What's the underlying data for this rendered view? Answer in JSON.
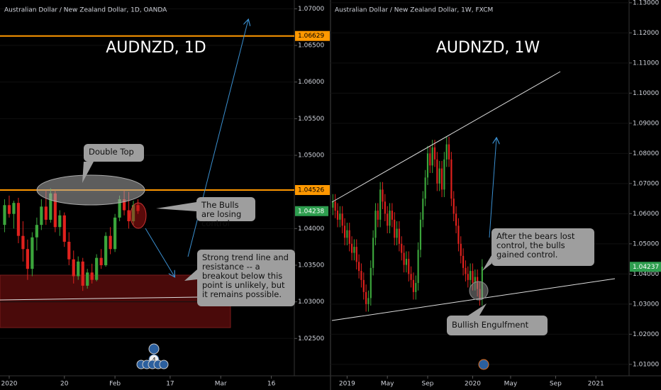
{
  "chart_data": [
    {
      "type": "candlestick",
      "title": "Australian Dollar / New Zealand Dollar, 1D, OANDA",
      "watermark": "AUDNZD, 1D",
      "up_color": "#3ba53b",
      "down_color": "#e0211d",
      "open": [
        1.0405,
        1.0432,
        1.042,
        1.0435,
        1.039,
        1.0372,
        1.0345,
        1.0388,
        1.0405,
        1.043,
        1.0412,
        1.0448,
        1.0402,
        1.0418,
        1.0382,
        1.0358,
        1.0335,
        1.0355,
        1.0322,
        1.034,
        1.033,
        1.036,
        1.035,
        1.039,
        1.0372,
        1.0415,
        1.044,
        1.0425,
        1.041,
        1.0432
      ],
      "high": [
        1.044,
        1.0445,
        1.0438,
        1.0442,
        1.041,
        1.0385,
        1.0395,
        1.0415,
        1.044,
        1.0452,
        1.0455,
        1.0452,
        1.0425,
        1.0422,
        1.0395,
        1.037,
        1.0362,
        1.036,
        1.0345,
        1.0352,
        1.0365,
        1.0372,
        1.0395,
        1.0402,
        1.042,
        1.0445,
        1.0452,
        1.045,
        1.0438,
        1.044
      ],
      "low": [
        1.0395,
        1.0415,
        1.04,
        1.038,
        1.0355,
        1.033,
        1.0335,
        1.037,
        1.0398,
        1.0405,
        1.0408,
        1.0395,
        1.039,
        1.0375,
        1.035,
        1.0325,
        1.033,
        1.0315,
        1.0318,
        1.0325,
        1.0328,
        1.0345,
        1.0348,
        1.0365,
        1.0368,
        1.041,
        1.0418,
        1.04,
        1.0405,
        1.042
      ],
      "close": [
        1.0432,
        1.042,
        1.0435,
        1.039,
        1.0372,
        1.0345,
        1.0388,
        1.0405,
        1.043,
        1.0412,
        1.0448,
        1.0402,
        1.0418,
        1.0382,
        1.0358,
        1.0335,
        1.0355,
        1.0322,
        1.034,
        1.033,
        1.036,
        1.035,
        1.039,
        1.0372,
        1.0415,
        1.044,
        1.0425,
        1.041,
        1.0432,
        1.0424
      ],
      "xlim": [
        -1,
        63
      ],
      "xticks": [
        {
          "value": 1,
          "label": "2020"
        },
        {
          "value": 13,
          "label": "20"
        },
        {
          "value": 24,
          "label": "Feb"
        },
        {
          "value": 36,
          "label": "17"
        },
        {
          "value": 47,
          "label": "Mar"
        },
        {
          "value": 58,
          "label": "16"
        }
      ],
      "ylim": [
        1.0199,
        1.0712
      ],
      "yticks": [
        {
          "value": 1.025,
          "label": "1.02500"
        },
        {
          "value": 1.03,
          "label": "1.03000"
        },
        {
          "value": 1.035,
          "label": "1.03500"
        },
        {
          "value": 1.04,
          "label": "1.04000"
        },
        {
          "value": 1.045,
          "label": "1.04500"
        },
        {
          "value": 1.05,
          "label": "1.05000"
        },
        {
          "value": 1.055,
          "label": "1.05500"
        },
        {
          "value": 1.06,
          "label": "1.06000"
        },
        {
          "value": 1.065,
          "label": "1.06500"
        },
        {
          "value": 1.07,
          "label": "1.07000"
        }
      ],
      "price_lines": [
        {
          "value": 1.06629,
          "color": "#ff9800"
        },
        {
          "value": 1.04526,
          "color": "#ff9800"
        }
      ],
      "last_price": {
        "value": 1.04238,
        "color": "#2e9e4f"
      },
      "event_count": 4,
      "annotations": [
        "Double Top",
        "The Bulls are losing control",
        "Strong trend line and resistance -- a breakout below this point is unlikely, but it remains possible."
      ]
    },
    {
      "type": "candlestick",
      "title": "Australian Dollar / New Zealand Dollar, 1W, FXCM",
      "watermark": "AUDNZD, 1W",
      "up_color": "#3ba53b",
      "down_color": "#e0211d",
      "open": [
        1.062,
        1.064,
        1.061,
        1.058,
        1.06,
        1.056,
        1.052,
        1.0545,
        1.05,
        1.047,
        1.049,
        1.044,
        1.041,
        1.038,
        1.034,
        1.03,
        1.032,
        1.042,
        1.052,
        1.061,
        1.058,
        1.068,
        1.064,
        1.06,
        1.056,
        1.061,
        1.058,
        1.052,
        1.055,
        1.05,
        1.047,
        1.043,
        1.045,
        1.04,
        1.038,
        1.034,
        1.037,
        1.048,
        1.058,
        1.065,
        1.072,
        1.08,
        1.076,
        1.082,
        1.078,
        1.07,
        1.075,
        1.068,
        1.078,
        1.083,
        1.078,
        1.065,
        1.06,
        1.056,
        1.05,
        1.046,
        1.042,
        1.04,
        1.038,
        1.041,
        1.037,
        1.039,
        1.035,
        1.032
      ],
      "high": [
        1.0665,
        1.0665,
        1.0635,
        1.0625,
        1.0625,
        1.0585,
        1.057,
        1.057,
        1.0525,
        1.0515,
        1.0515,
        1.0465,
        1.0435,
        1.0405,
        1.0365,
        1.0345,
        1.0445,
        1.0545,
        1.0635,
        1.0635,
        1.0705,
        1.0705,
        1.0665,
        1.0625,
        1.0635,
        1.0635,
        1.0605,
        1.0575,
        1.0575,
        1.0525,
        1.0495,
        1.0475,
        1.0475,
        1.0425,
        1.0405,
        1.0395,
        1.0505,
        1.0605,
        1.0675,
        1.0745,
        1.0825,
        1.0825,
        1.0845,
        1.0845,
        1.0805,
        1.0775,
        1.0775,
        1.0805,
        1.0855,
        1.0855,
        1.0805,
        1.0675,
        1.0625,
        1.0585,
        1.0525,
        1.0485,
        1.0445,
        1.0425,
        1.0435,
        1.0435,
        1.0415,
        1.0415,
        1.0375,
        1.0449
      ],
      "low": [
        1.0595,
        1.0585,
        1.0555,
        1.0555,
        1.0535,
        1.0495,
        1.0495,
        1.0475,
        1.0445,
        1.0445,
        1.0415,
        1.0385,
        1.0355,
        1.0315,
        1.0275,
        1.0275,
        1.0295,
        1.0395,
        1.0495,
        1.0555,
        1.0555,
        1.0615,
        1.0575,
        1.0535,
        1.0535,
        1.0555,
        1.0495,
        1.0495,
        1.0475,
        1.0445,
        1.0405,
        1.0405,
        1.0375,
        1.0355,
        1.0315,
        1.0315,
        1.0345,
        1.0455,
        1.0555,
        1.0625,
        1.0695,
        1.0735,
        1.0735,
        1.0755,
        1.0675,
        1.0675,
        1.0655,
        1.0655,
        1.0755,
        1.0755,
        1.0625,
        1.0575,
        1.0535,
        1.0475,
        1.0435,
        1.0395,
        1.0375,
        1.0355,
        1.0355,
        1.0345,
        1.0345,
        1.0325,
        1.0295,
        1.0295
      ],
      "close": [
        1.064,
        1.061,
        1.058,
        1.06,
        1.056,
        1.052,
        1.0545,
        1.05,
        1.047,
        1.049,
        1.044,
        1.041,
        1.038,
        1.034,
        1.03,
        1.032,
        1.042,
        1.052,
        1.061,
        1.058,
        1.068,
        1.064,
        1.06,
        1.056,
        1.061,
        1.058,
        1.052,
        1.055,
        1.05,
        1.047,
        1.043,
        1.045,
        1.04,
        1.038,
        1.034,
        1.037,
        1.048,
        1.058,
        1.065,
        1.072,
        1.08,
        1.076,
        1.082,
        1.078,
        1.07,
        1.075,
        1.068,
        1.078,
        1.083,
        1.078,
        1.065,
        1.06,
        1.056,
        1.05,
        1.046,
        1.042,
        1.04,
        1.038,
        1.041,
        1.037,
        1.039,
        1.035,
        1.032,
        1.0424
      ],
      "xlim": [
        -1,
        125
      ],
      "xticks": [
        {
          "value": 6,
          "label": "2019"
        },
        {
          "value": 23,
          "label": "May"
        },
        {
          "value": 40,
          "label": "Sep"
        },
        {
          "value": 59,
          "label": "2020"
        },
        {
          "value": 75,
          "label": "May"
        },
        {
          "value": 94,
          "label": "Sep"
        },
        {
          "value": 111,
          "label": "2021"
        }
      ],
      "ylim": [
        1.0062,
        1.1309
      ],
      "yticks": [
        {
          "value": 1.01,
          "label": "1.01000"
        },
        {
          "value": 1.02,
          "label": "1.02000"
        },
        {
          "value": 1.03,
          "label": "1.03000"
        },
        {
          "value": 1.04,
          "label": "1.04000"
        },
        {
          "value": 1.05,
          "label": "1.05000"
        },
        {
          "value": 1.06,
          "label": "1.06000"
        },
        {
          "value": 1.07,
          "label": "1.07000"
        },
        {
          "value": 1.08,
          "label": "1.08000"
        },
        {
          "value": 1.09,
          "label": "1.09000"
        },
        {
          "value": 1.1,
          "label": "1.10000"
        },
        {
          "value": 1.11,
          "label": "1.11000"
        },
        {
          "value": 1.12,
          "label": "1.12000"
        },
        {
          "value": 1.13,
          "label": "1.13000"
        }
      ],
      "price_lines": [],
      "last_price": {
        "value": 1.04237,
        "color": "#2e9e4f"
      },
      "annotations": [
        "After the bears lost control, the bulls gained control.",
        "Bullish Engulfment"
      ]
    }
  ]
}
